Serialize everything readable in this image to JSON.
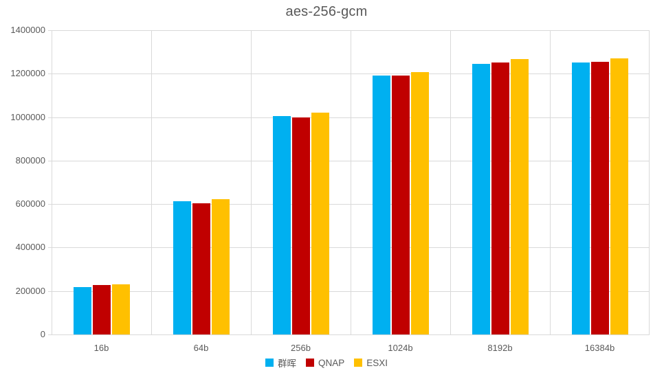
{
  "chart_data": {
    "type": "bar",
    "title": "aes-256-gcm",
    "xlabel": "",
    "ylabel": "",
    "categories": [
      "16b",
      "64b",
      "256b",
      "1024b",
      "8192b",
      "16384b"
    ],
    "series": [
      {
        "name": "群晖",
        "color": "#00B0F0",
        "values": [
          219000,
          613000,
          1006000,
          1190000,
          1246000,
          1251000
        ]
      },
      {
        "name": "QNAP",
        "color": "#C00000",
        "values": [
          227000,
          605000,
          1000000,
          1192000,
          1250000,
          1254000
        ]
      },
      {
        "name": "ESXI",
        "color": "#FFC000",
        "values": [
          230000,
          624000,
          1021000,
          1207000,
          1266000,
          1270000
        ]
      }
    ],
    "ylim": [
      0,
      1400000
    ],
    "ytick_step": 200000,
    "ytick_labels": [
      "0",
      "200000",
      "400000",
      "600000",
      "800000",
      "1000000",
      "1200000",
      "1400000"
    ],
    "grid": true,
    "legend_position": "bottom"
  },
  "colors": {
    "background": "#FFFFFF",
    "text": "#595959",
    "gridline": "#D9D9D9"
  }
}
